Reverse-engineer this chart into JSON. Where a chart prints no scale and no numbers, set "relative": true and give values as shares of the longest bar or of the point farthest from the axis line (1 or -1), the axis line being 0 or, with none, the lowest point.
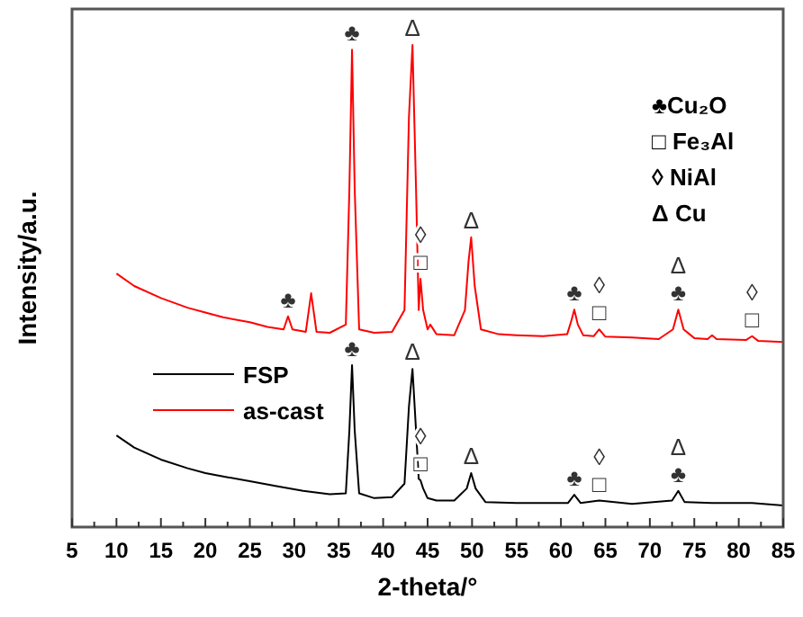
{
  "chart_data": {
    "type": "line",
    "relative": true,
    "xlabel": "2-theta/°",
    "ylabel": "Intensity/a.u.",
    "xlim": [
      5,
      85
    ],
    "xticks": [
      5,
      {
        "value": 7.5,
        "label": null
      },
      10,
      {
        "value": 12.5,
        "label": null
      },
      15,
      {
        "value": 17.5,
        "label": null
      },
      20,
      {
        "value": 22.5,
        "label": null
      },
      25,
      {
        "value": 27.5,
        "label": null
      },
      30,
      {
        "value": 32.5,
        "label": null
      },
      35,
      {
        "value": 37.5,
        "label": null
      },
      40,
      {
        "value": 42.5,
        "label": null
      },
      45,
      {
        "value": 47.5,
        "label": null
      },
      50,
      {
        "value": 52.5,
        "label": null
      },
      55,
      {
        "value": 57.5,
        "label": null
      },
      60,
      {
        "value": 62.5,
        "label": null
      },
      65,
      {
        "value": 67.5,
        "label": null
      },
      70,
      {
        "value": 72.5,
        "label": null
      },
      75,
      {
        "value": 77.5,
        "label": null
      },
      80,
      {
        "value": 82.5,
        "label": null
      },
      85
    ],
    "tick_labels": "x",
    "legend": "left",
    "grid": false,
    "marker": "none",
    "line_style": "solid",
    "series": [
      {
        "name": "FSP",
        "color": "#000000",
        "x": [
          10,
          12,
          15,
          18,
          20,
          22,
          25,
          28,
          31,
          34,
          35.8,
          36.2,
          36.5,
          36.8,
          37.3,
          39,
          41,
          42.4,
          42.9,
          43.3,
          43.7,
          44.0,
          44.2,
          44.5,
          45,
          46,
          48,
          49.4,
          49.9,
          50.4,
          51.5,
          55,
          60.8,
          61.5,
          62.2,
          64.3,
          68,
          72.5,
          73.2,
          73.9,
          77,
          81.5,
          85
        ],
        "values": [
          0.19,
          0.165,
          0.14,
          0.122,
          0.112,
          0.105,
          0.095,
          0.085,
          0.075,
          0.068,
          0.07,
          0.2,
          0.336,
          0.2,
          0.07,
          0.06,
          0.062,
          0.09,
          0.25,
          0.328,
          0.2,
          0.1,
          0.097,
          0.08,
          0.06,
          0.055,
          0.055,
          0.08,
          0.112,
          0.08,
          0.052,
          0.05,
          0.05,
          0.067,
          0.05,
          0.055,
          0.048,
          0.055,
          0.075,
          0.052,
          0.05,
          0.05,
          0.045
        ]
      },
      {
        "name": "as-cast",
        "color": "#ff0000",
        "x": [
          10,
          12,
          15,
          18,
          20,
          22,
          25,
          27,
          28.8,
          29.3,
          29.8,
          31.3,
          31.9,
          32.5,
          34,
          35.8,
          36.2,
          36.5,
          36.8,
          37.3,
          39,
          41,
          42.4,
          42.9,
          43.3,
          43.7,
          44.0,
          44.2,
          44.5,
          45,
          45.3,
          46,
          48,
          49.2,
          49.6,
          49.9,
          50.3,
          51,
          53,
          55,
          58,
          60.7,
          61.2,
          61.5,
          61.9,
          62.5,
          63.7,
          64.3,
          65,
          68,
          71,
          72.6,
          73.2,
          73.8,
          75,
          76.5,
          77,
          77.5,
          80.8,
          81.5,
          82.2,
          85
        ],
        "values": [
          0.526,
          0.5,
          0.475,
          0.455,
          0.445,
          0.435,
          0.425,
          0.415,
          0.41,
          0.437,
          0.41,
          0.405,
          0.485,
          0.405,
          0.403,
          0.42,
          0.7,
          0.99,
          0.7,
          0.41,
          0.403,
          0.405,
          0.45,
          0.85,
          1,
          0.7,
          0.45,
          0.515,
          0.45,
          0.41,
          0.42,
          0.4,
          0.398,
          0.45,
          0.55,
          0.601,
          0.5,
          0.41,
          0.4,
          0.398,
          0.396,
          0.4,
          0.43,
          0.451,
          0.42,
          0.398,
          0.396,
          0.41,
          0.395,
          0.393,
          0.39,
          0.41,
          0.451,
          0.41,
          0.392,
          0.39,
          0.398,
          0.39,
          0.388,
          0.396,
          0.386,
          0.384
        ]
      }
    ],
    "annotations": [
      "♣Cu₂O",
      "□ Fe₃Al",
      "◊ NiAl",
      "Δ Cu",
      {
        "text": "♣",
        "x": 29.3,
        "y": 0.437
      },
      {
        "text": "♣",
        "x": 36.5,
        "y": 0.99
      },
      {
        "text": "Δ",
        "x": 43.3,
        "y": 1
      },
      {
        "text": "□",
        "x": 44.2,
        "y": 0.515
      },
      {
        "text": "◊",
        "x": 44.2,
        "y": 0.515
      },
      {
        "text": "Δ",
        "x": 49.9,
        "y": 0.601
      },
      {
        "text": "♣",
        "x": 61.5,
        "y": 0.451
      },
      {
        "text": "□",
        "x": 64.3,
        "y": 0.41
      },
      {
        "text": "◊",
        "x": 64.3,
        "y": 0.41
      },
      {
        "text": "♣",
        "x": 73.2,
        "y": 0.451
      },
      {
        "text": "Δ",
        "x": 73.2,
        "y": 0.451
      },
      {
        "text": "□",
        "x": 81.5,
        "y": 0.396
      },
      {
        "text": "◊",
        "x": 81.5,
        "y": 0.396
      },
      {
        "text": "♣",
        "x": 36.5,
        "y": 0.336
      },
      {
        "text": "Δ",
        "x": 43.3,
        "y": 0.328
      },
      {
        "text": "□",
        "x": 44.2,
        "y": 0.097
      },
      {
        "text": "◊",
        "x": 44.2,
        "y": 0.097
      },
      {
        "text": "Δ",
        "x": 49.9,
        "y": 0.112
      },
      {
        "text": "♣",
        "x": 61.5,
        "y": 0.067
      },
      {
        "text": "□",
        "x": 64.3,
        "y": 0.055
      },
      {
        "text": "◊",
        "x": 64.3,
        "y": 0.055
      },
      {
        "text": "♣",
        "x": 73.2,
        "y": 0.075
      },
      {
        "text": "Δ",
        "x": 73.2,
        "y": 0.075
      }
    ]
  }
}
